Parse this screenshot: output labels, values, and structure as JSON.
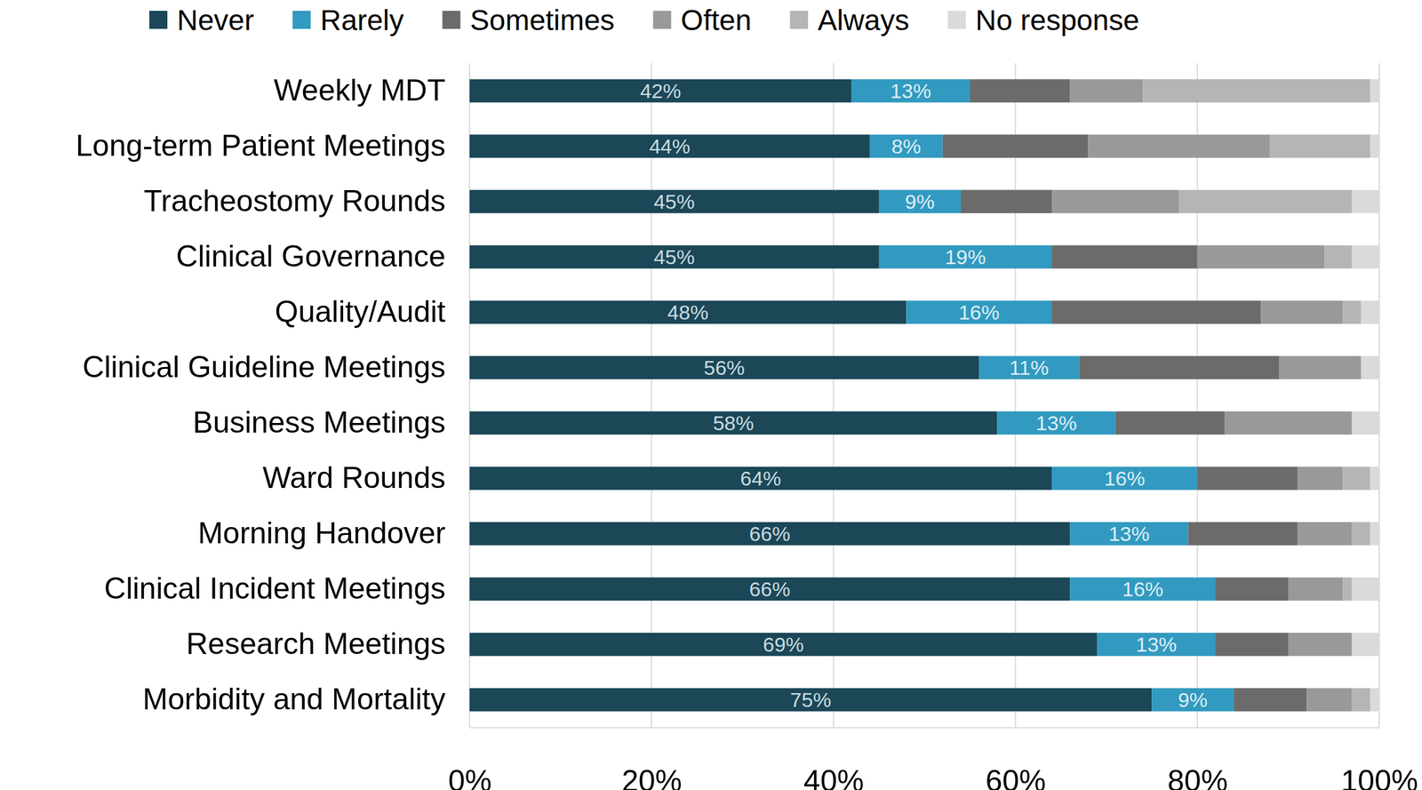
{
  "chart_data": {
    "type": "bar",
    "orientation": "horizontal",
    "stacked": true,
    "grid": true,
    "legend": "top",
    "categories": [
      "Weekly MDT",
      "Long-term Patient Meetings",
      "Tracheostomy Rounds",
      "Clinical Governance",
      "Quality/Audit",
      "Clinical Guideline Meetings",
      "Business Meetings",
      "Ward Rounds",
      "Morning Handover",
      "Clinical Incident Meetings",
      "Research Meetings",
      "Morbidity and Mortality"
    ],
    "series": [
      {
        "name": "Never",
        "color": "#1b4757",
        "data_labels": true,
        "values": [
          42,
          44,
          45,
          45,
          48,
          56,
          58,
          64,
          66,
          66,
          69,
          75
        ],
        "value_labels": [
          "42%",
          "44%",
          "45%",
          "45%",
          "48%",
          "56%",
          "58%",
          "64%",
          "66%",
          "66%",
          "69%",
          "75%"
        ]
      },
      {
        "name": "Rarely",
        "color": "#329ac0",
        "data_labels": true,
        "values": [
          13,
          8,
          9,
          19,
          16,
          11,
          13,
          16,
          13,
          16,
          13,
          9
        ],
        "value_labels": [
          "13%",
          "8%",
          "9%",
          "19%",
          "16%",
          "11%",
          "13%",
          "16%",
          "13%",
          "16%",
          "13%",
          "9%"
        ]
      },
      {
        "name": "Sometimes",
        "color": "#6b6b6b",
        "data_labels": false,
        "values": [
          11,
          16,
          10,
          16,
          23,
          22,
          12,
          11,
          12,
          8,
          8,
          8
        ]
      },
      {
        "name": "Often",
        "color": "#999999",
        "data_labels": false,
        "values": [
          8,
          20,
          14,
          14,
          9,
          9,
          14,
          5,
          6,
          6,
          7,
          5
        ]
      },
      {
        "name": "Always",
        "color": "#b5b5b5",
        "data_labels": false,
        "values": [
          25,
          11,
          19,
          3,
          2,
          0,
          0,
          3,
          2,
          1,
          0,
          2
        ]
      },
      {
        "name": "No response",
        "color": "#dadada",
        "data_labels": false,
        "values": [
          1,
          1,
          3,
          3,
          2,
          2,
          3,
          1,
          1,
          3,
          3,
          1
        ]
      }
    ],
    "xlim": [
      0,
      100
    ],
    "xticks": [
      {
        "value": 0,
        "label": "0%"
      },
      {
        "value": 20,
        "label": "20%"
      },
      {
        "value": 40,
        "label": "40%"
      },
      {
        "value": 60,
        "label": "60%"
      },
      {
        "value": 80,
        "label": "80%"
      },
      {
        "value": 100,
        "label": "100%"
      }
    ]
  }
}
